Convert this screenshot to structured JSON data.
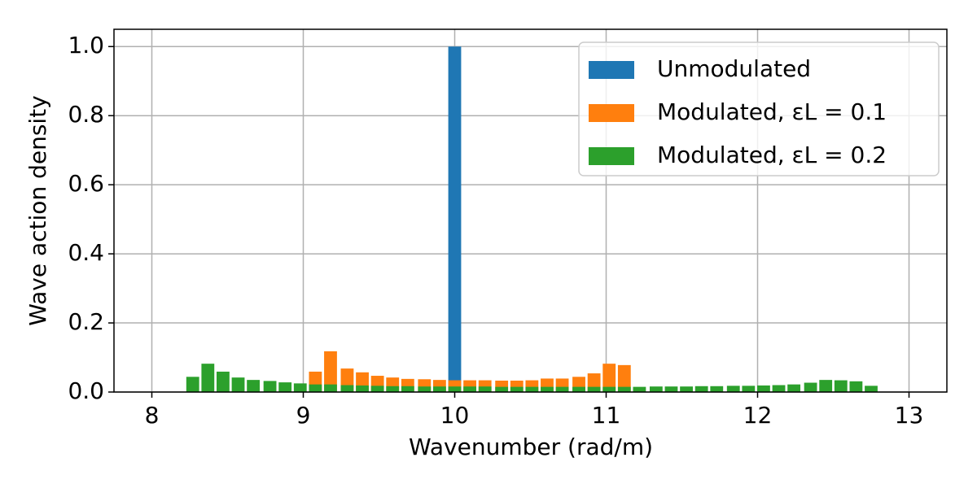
{
  "chart_data": {
    "type": "bar",
    "xlabel": "Wavenumber (rad/m)",
    "ylabel": "Wave action density",
    "x": [
      8.27,
      8.37,
      8.47,
      8.57,
      8.67,
      8.78,
      8.88,
      8.98,
      9.08,
      9.18,
      9.29,
      9.39,
      9.49,
      9.59,
      9.69,
      9.8,
      9.9,
      10.0,
      10.1,
      10.2,
      10.31,
      10.41,
      10.51,
      10.61,
      10.71,
      10.82,
      10.92,
      11.02,
      11.12,
      11.22,
      11.33,
      11.43,
      11.53,
      11.63,
      11.73,
      11.84,
      11.94,
      12.04,
      12.14,
      12.24,
      12.35,
      12.45,
      12.55,
      12.65,
      12.75
    ],
    "series": [
      {
        "name": "Unmodulated",
        "color": "#1f77b4",
        "values": [
          0,
          0,
          0,
          0,
          0,
          0,
          0,
          0,
          0,
          0,
          0,
          0,
          0,
          0,
          0,
          0,
          0,
          1.0,
          0,
          0,
          0,
          0,
          0,
          0,
          0,
          0,
          0,
          0,
          0,
          0,
          0,
          0,
          0,
          0,
          0,
          0,
          0,
          0,
          0,
          0,
          0,
          0,
          0,
          0,
          0
        ]
      },
      {
        "name": "Modulated, εL = 0.1",
        "color": "#ff7f0e",
        "values": [
          0,
          0,
          0,
          0,
          0,
          0,
          0,
          0,
          0.059,
          0.118,
          0.068,
          0.057,
          0.047,
          0.042,
          0.038,
          0.037,
          0.035,
          0.034,
          0.034,
          0.034,
          0.033,
          0.033,
          0.034,
          0.039,
          0.039,
          0.044,
          0.054,
          0.082,
          0.078,
          0,
          0,
          0,
          0,
          0,
          0,
          0,
          0,
          0,
          0,
          0,
          0,
          0,
          0,
          0,
          0
        ]
      },
      {
        "name": "Modulated, εL = 0.2",
        "color": "#2ca02c",
        "values": [
          0.044,
          0.082,
          0.059,
          0.042,
          0.035,
          0.032,
          0.028,
          0.025,
          0.022,
          0.022,
          0.02,
          0.019,
          0.018,
          0.017,
          0.017,
          0.016,
          0.016,
          0.016,
          0.016,
          0.016,
          0.015,
          0.015,
          0.015,
          0.015,
          0.015,
          0.015,
          0.015,
          0.015,
          0.015,
          0.015,
          0.016,
          0.016,
          0.016,
          0.017,
          0.017,
          0.018,
          0.018,
          0.019,
          0.02,
          0.022,
          0.027,
          0.035,
          0.034,
          0.031,
          0.018
        ]
      }
    ],
    "xlim": [
      7.75,
      13.25
    ],
    "xticks": [
      8,
      9,
      10,
      11,
      12,
      13
    ],
    "ylim": [
      0,
      1.05
    ],
    "yticks": [
      {
        "value": 0,
        "label": "0.0"
      },
      0.2,
      0.4,
      0.6,
      0.8,
      {
        "value": 1,
        "label": "1.0"
      }
    ],
    "grid": true,
    "legend": "upper right"
  }
}
